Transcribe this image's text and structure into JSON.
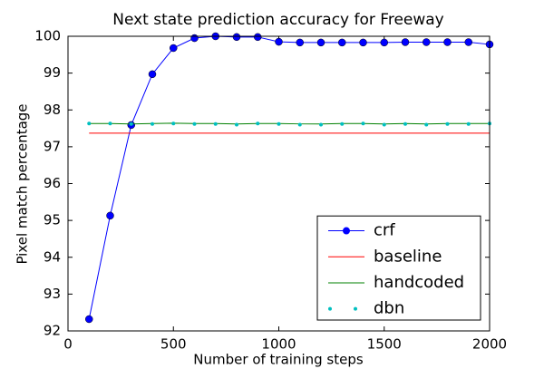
{
  "chart_data": {
    "type": "line",
    "title": "Next state prediction accuracy for Freeway",
    "x_label": "Number of training steps",
    "y_label": "Pixel match percentage",
    "x": [
      100,
      200,
      300,
      400,
      500,
      600,
      700,
      800,
      900,
      1000,
      1100,
      1200,
      1300,
      1400,
      1500,
      1600,
      1700,
      1800,
      1900,
      2000
    ],
    "series": [
      {
        "name": "crf",
        "color": "#0000ff",
        "linestyle": "solid",
        "marker": "circle",
        "values": [
          92.32,
          95.13,
          97.59,
          98.97,
          99.68,
          99.95,
          100,
          99.98,
          99.98,
          99.85,
          99.83,
          99.83,
          99.83,
          99.83,
          99.83,
          99.84,
          99.84,
          99.84,
          99.84,
          99.78
        ]
      },
      {
        "name": "baseline",
        "color": "#ff0000",
        "linestyle": "solid",
        "marker": "none",
        "values": [
          97.37,
          97.37,
          97.37,
          97.37,
          97.37,
          97.37,
          97.37,
          97.37,
          97.37,
          97.37,
          97.37,
          97.37,
          97.37,
          97.37,
          97.37,
          97.37,
          97.37,
          97.37,
          97.37,
          97.37
        ]
      },
      {
        "name": "handcoded",
        "color": "#008000",
        "linestyle": "solid",
        "marker": "none",
        "values": [
          97.63,
          97.63,
          97.62,
          97.63,
          97.64,
          97.63,
          97.63,
          97.62,
          97.63,
          97.63,
          97.62,
          97.62,
          97.63,
          97.63,
          97.62,
          97.63,
          97.62,
          97.63,
          97.63,
          97.63
        ]
      },
      {
        "name": "dbn",
        "color": "#00bfbf",
        "linestyle": "none",
        "marker": "dot",
        "values": [
          97.63,
          97.63,
          97.62,
          97.62,
          97.63,
          97.62,
          97.62,
          97.6,
          97.63,
          97.62,
          97.6,
          97.6,
          97.62,
          97.63,
          97.6,
          97.62,
          97.6,
          97.62,
          97.62,
          97.63
        ]
      }
    ],
    "xlim": [
      0,
      2000
    ],
    "xticks": [
      0,
      500,
      1000,
      1500,
      2000
    ],
    "ylim": [
      92,
      100
    ],
    "yticks": [
      92,
      93,
      94,
      95,
      96,
      97,
      98,
      99,
      100
    ],
    "grid": false,
    "legend": "lower right"
  }
}
